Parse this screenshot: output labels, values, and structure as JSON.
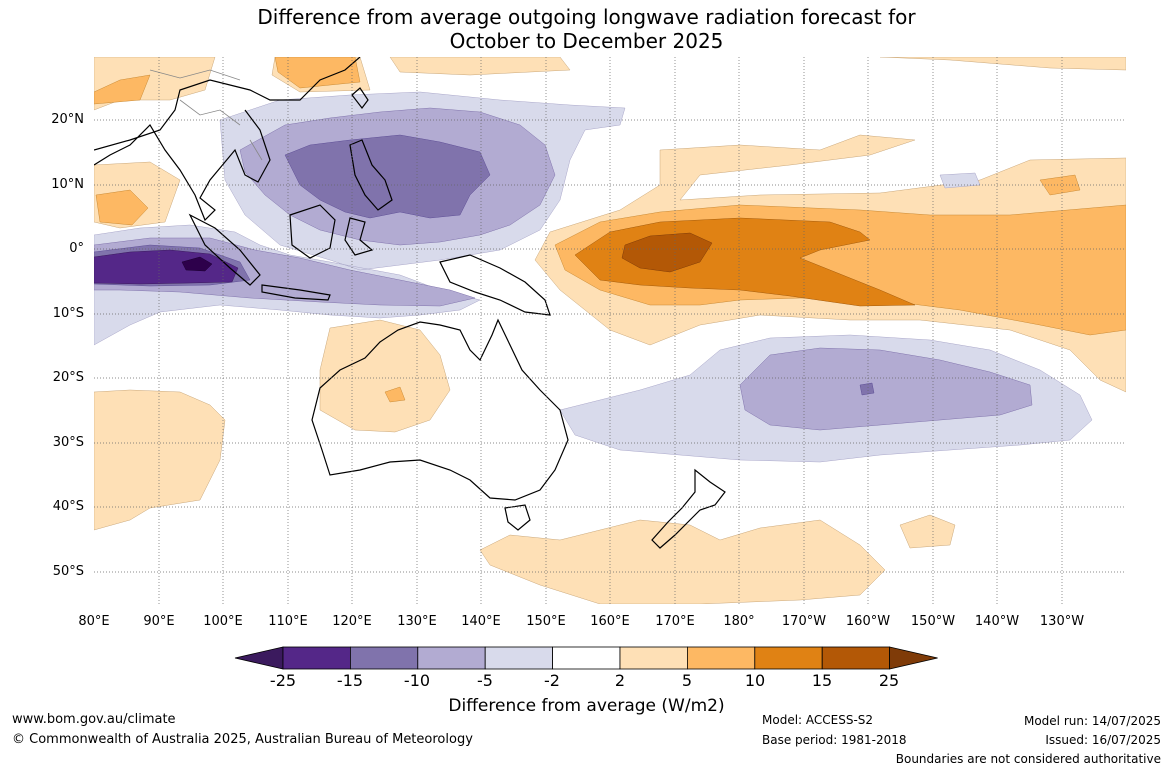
{
  "title": {
    "line1": "Difference from average outgoing longwave radiation forecast for",
    "line2": "October to December 2025"
  },
  "map": {
    "lat_labels": [
      "20°N",
      "10°N",
      "0°",
      "10°S",
      "20°S",
      "30°S",
      "40°S",
      "50°S"
    ],
    "lon_labels": [
      "80°E",
      "90°E",
      "100°E",
      "110°E",
      "120°E",
      "130°E",
      "140°E",
      "150°E",
      "160°E",
      "170°E",
      "180°",
      "170°W",
      "160°W",
      "150°W",
      "140°W",
      "130°W"
    ]
  },
  "colorbar": {
    "ticks": [
      "-25",
      "-15",
      "-10",
      "-5",
      "-2",
      "2",
      "5",
      "10",
      "15",
      "25"
    ],
    "colors": [
      "#3b1a5e",
      "#542788",
      "#8073ac",
      "#b2abd2",
      "#d8daeb",
      "#ffffff",
      "#fee0b6",
      "#fdb863",
      "#e08214",
      "#b35806",
      "#7f3b08"
    ],
    "label": "Difference from average (W/m2)"
  },
  "footer": {
    "website": "www.bom.gov.au/climate",
    "copyright": "© Commonwealth of Australia 2025, Australian Bureau of Meteorology",
    "model": "Model: ACCESS-S2",
    "base_period": "Base period: 1981-2018",
    "model_run": "Model run: 14/07/2025",
    "issued": "Issued: 16/07/2025",
    "disclaimer": "Boundaries are not considered authoritative"
  }
}
